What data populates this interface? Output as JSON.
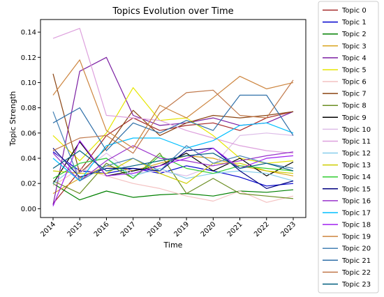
{
  "chart_data": {
    "type": "line",
    "title": "Topics Evolution over Time",
    "xlabel": "Time",
    "ylabel": "Topic Strength",
    "x": [
      "2014",
      "2015",
      "2016",
      "2017",
      "2018",
      "2019",
      "2020",
      "2021",
      "2022",
      "2023"
    ],
    "ylim": [
      -0.007,
      0.15
    ],
    "yticks": [
      "0.00",
      "0.02",
      "0.04",
      "0.06",
      "0.08",
      "0.10",
      "0.12",
      "0.14"
    ],
    "legend_position": "outside-right",
    "grid": false,
    "series": [
      {
        "name": "Topic 0",
        "color": "#a52a2a",
        "values": [
          0.004,
          0.03,
          0.058,
          0.072,
          0.062,
          0.066,
          0.068,
          0.062,
          0.072,
          0.077
        ]
      },
      {
        "name": "Topic 1",
        "color": "#0000cd",
        "values": [
          0.045,
          0.03,
          0.028,
          0.032,
          0.028,
          0.034,
          0.03,
          0.025,
          0.018,
          0.02
        ]
      },
      {
        "name": "Topic 2",
        "color": "#008000",
        "values": [
          0.02,
          0.007,
          0.014,
          0.009,
          0.011,
          0.012,
          0.01,
          0.014,
          0.013,
          0.015
        ]
      },
      {
        "name": "Topic 3",
        "color": "#daa520",
        "values": [
          0.012,
          0.024,
          0.034,
          0.03,
          0.036,
          0.042,
          0.04,
          0.034,
          0.03,
          0.026
        ]
      },
      {
        "name": "Topic 4",
        "color": "#7b1fa2",
        "values": [
          0.003,
          0.109,
          0.12,
          0.074,
          0.066,
          0.068,
          0.072,
          0.066,
          0.068,
          0.077
        ]
      },
      {
        "name": "Topic 5",
        "color": "#e6e600",
        "values": [
          0.058,
          0.038,
          0.06,
          0.096,
          0.07,
          0.072,
          0.058,
          0.04,
          0.036,
          0.038
        ]
      },
      {
        "name": "Topic 6",
        "color": "#f4c2c2",
        "values": [
          0.018,
          0.032,
          0.026,
          0.02,
          0.016,
          0.01,
          0.006,
          0.014,
          0.005,
          0.01
        ]
      },
      {
        "name": "Topic 7",
        "color": "#8b4513",
        "values": [
          0.107,
          0.028,
          0.048,
          0.078,
          0.058,
          0.068,
          0.074,
          0.072,
          0.074,
          0.077
        ]
      },
      {
        "name": "Topic 8",
        "color": "#6b8e23",
        "values": [
          0.022,
          0.012,
          0.036,
          0.024,
          0.044,
          0.012,
          0.024,
          0.012,
          0.01,
          0.008
        ]
      },
      {
        "name": "Topic 9",
        "color": "#000000",
        "values": [
          0.02,
          0.053,
          0.026,
          0.03,
          0.034,
          0.044,
          0.03,
          0.04,
          0.026,
          0.037
        ]
      },
      {
        "name": "Topic 10",
        "color": "#ddbde8",
        "values": [
          0.046,
          0.028,
          0.044,
          0.028,
          0.03,
          0.026,
          0.034,
          0.058,
          0.06,
          0.058
        ]
      },
      {
        "name": "Topic 11",
        "color": "#dda0dd",
        "values": [
          0.135,
          0.143,
          0.074,
          0.072,
          0.07,
          0.062,
          0.056,
          0.05,
          0.046,
          0.044
        ]
      },
      {
        "name": "Topic 12",
        "color": "#87ceeb",
        "values": [
          0.02,
          0.036,
          0.04,
          0.026,
          0.032,
          0.024,
          0.028,
          0.03,
          0.028,
          0.022
        ]
      },
      {
        "name": "Topic 13",
        "color": "#cdcd00",
        "values": [
          0.03,
          0.028,
          0.028,
          0.04,
          0.028,
          0.02,
          0.036,
          0.036,
          0.03,
          0.028
        ]
      },
      {
        "name": "Topic 14",
        "color": "#32cd32",
        "values": [
          0.024,
          0.036,
          0.04,
          0.024,
          0.042,
          0.032,
          0.028,
          0.034,
          0.032,
          0.03
        ]
      },
      {
        "name": "Topic 15",
        "color": "#000080",
        "values": [
          0.048,
          0.025,
          0.032,
          0.032,
          0.03,
          0.046,
          0.048,
          0.03,
          0.016,
          0.022
        ]
      },
      {
        "name": "Topic 16",
        "color": "#9932cc",
        "values": [
          0.044,
          0.022,
          0.038,
          0.05,
          0.04,
          0.038,
          0.034,
          0.038,
          0.042,
          0.045
        ]
      },
      {
        "name": "Topic 17",
        "color": "#00bfff",
        "values": [
          0.04,
          0.022,
          0.05,
          0.056,
          0.056,
          0.048,
          0.054,
          0.066,
          0.068,
          0.06
        ]
      },
      {
        "name": "Topic 18",
        "color": "#a020f0",
        "values": [
          0.002,
          0.054,
          0.026,
          0.028,
          0.034,
          0.04,
          0.048,
          0.032,
          0.04,
          0.042
        ]
      },
      {
        "name": "Topic 19",
        "color": "#cd853f",
        "values": [
          0.09,
          0.118,
          0.062,
          0.048,
          0.082,
          0.072,
          0.088,
          0.105,
          0.095,
          0.1
        ]
      },
      {
        "name": "Topic 20",
        "color": "#4682b4",
        "values": [
          0.077,
          0.022,
          0.034,
          0.04,
          0.03,
          0.05,
          0.036,
          0.042,
          0.036,
          0.032
        ]
      },
      {
        "name": "Topic 21",
        "color": "#2f6fa8",
        "values": [
          0.068,
          0.08,
          0.046,
          0.068,
          0.06,
          0.07,
          0.062,
          0.09,
          0.09,
          0.058
        ]
      },
      {
        "name": "Topic 22",
        "color": "#c0784a",
        "values": [
          0.046,
          0.056,
          0.058,
          0.044,
          0.076,
          0.092,
          0.094,
          0.074,
          0.072,
          0.102
        ]
      },
      {
        "name": "Topic 23",
        "color": "#005f7f",
        "values": [
          0.032,
          0.046,
          0.03,
          0.034,
          0.038,
          0.042,
          0.044,
          0.032,
          0.036,
          0.03
        ]
      }
    ]
  }
}
